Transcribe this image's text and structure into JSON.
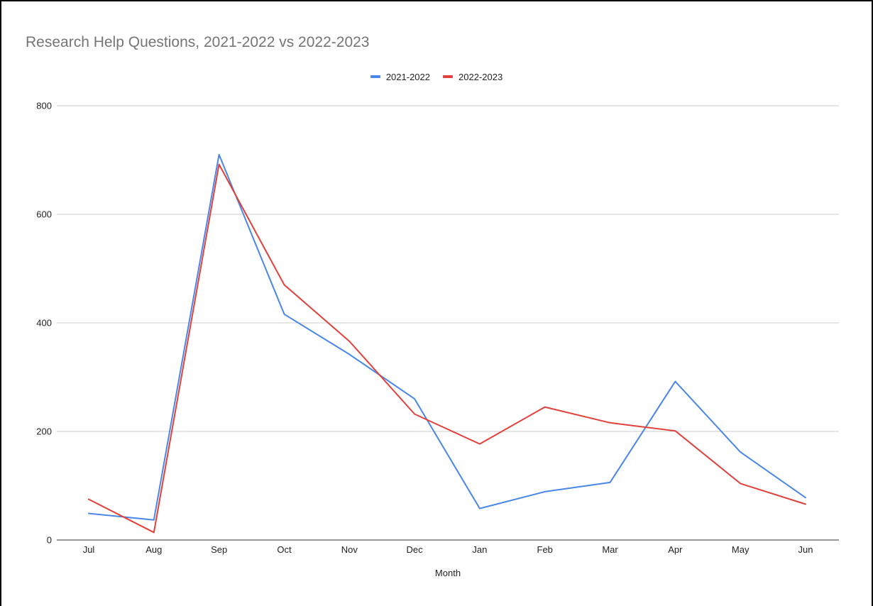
{
  "chart_data": {
    "type": "line",
    "title": "Research Help Questions, 2021-2022 vs 2022-2023",
    "xlabel": "Month",
    "ylabel": "",
    "categories": [
      "Jul",
      "Aug",
      "Sep",
      "Oct",
      "Nov",
      "Dec",
      "Jan",
      "Feb",
      "Mar",
      "Apr",
      "May",
      "Jun"
    ],
    "ylim": [
      0,
      800
    ],
    "yticks": [
      0,
      200,
      400,
      600,
      800
    ],
    "grid": true,
    "legend_position": "top-center",
    "series": [
      {
        "name": "2021-2022",
        "color": "#4a86e8",
        "values": [
          49,
          37,
          710,
          416,
          342,
          260,
          58,
          89,
          106,
          292,
          162,
          78
        ]
      },
      {
        "name": "2022-2023",
        "color": "#e2403b",
        "values": [
          75,
          14,
          692,
          470,
          366,
          232,
          177,
          245,
          216,
          201,
          104,
          66
        ]
      }
    ]
  }
}
